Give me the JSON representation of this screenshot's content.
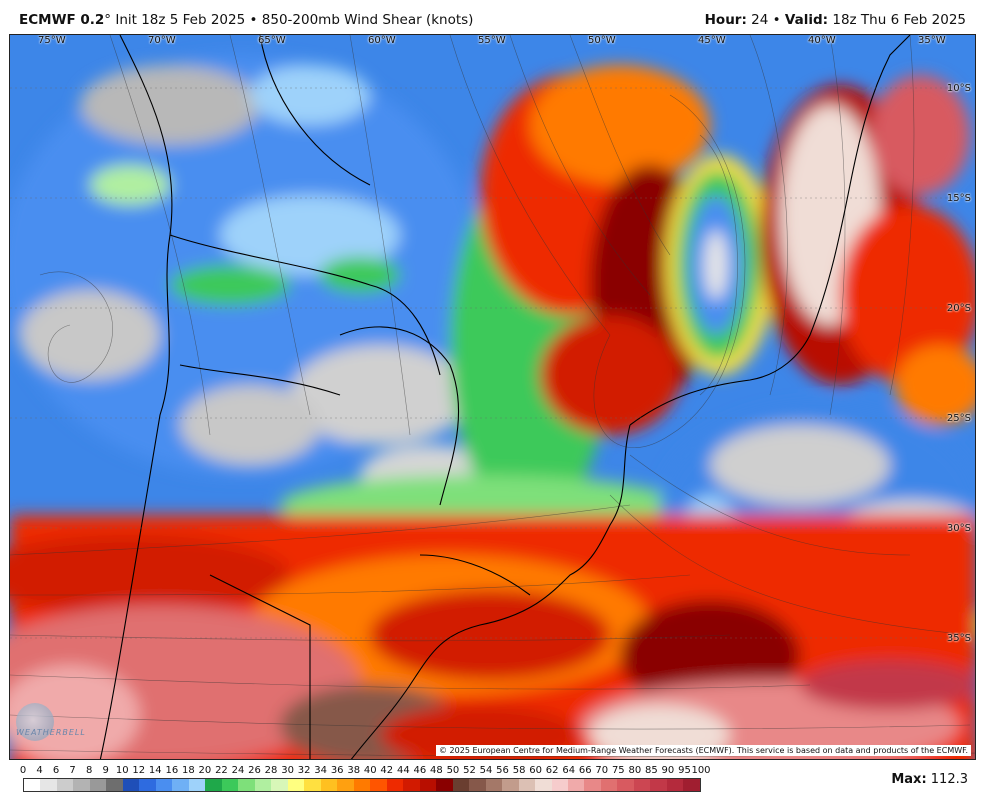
{
  "header": {
    "model": "ECMWF 0.2",
    "degree": "°",
    "init": "Init 18z 5 Feb 2025",
    "sep": "•",
    "field": "850-200mb Wind Shear (knots)",
    "hour_label": "Hour:",
    "hour_value": "24",
    "valid_label": "Valid:",
    "valid_value": "18z Thu 6 Feb 2025"
  },
  "map": {
    "lon_labels": [
      "75°W",
      "70°W",
      "65°W",
      "60°W",
      "55°W",
      "50°W",
      "45°W",
      "40°W",
      "35°W"
    ],
    "lat_labels": [
      "10°S",
      "15°S",
      "20°S",
      "25°S",
      "30°S",
      "35°S"
    ],
    "credit": "© 2025 European Centre for Medium-Range Weather Forecasts (ECMWF). This service is based on data and products of the ECMWF.",
    "watermark": "WEATHERBELL"
  },
  "colorbar": {
    "labels": [
      "0",
      "4",
      "6",
      "7",
      "8",
      "9",
      "10",
      "12",
      "14",
      "16",
      "18",
      "20",
      "22",
      "24",
      "26",
      "28",
      "30",
      "32",
      "34",
      "36",
      "38",
      "40",
      "42",
      "44",
      "46",
      "48",
      "50",
      "52",
      "54",
      "56",
      "58",
      "60",
      "62",
      "64",
      "66",
      "70",
      "75",
      "80",
      "85",
      "90",
      "95",
      "100"
    ],
    "colors": [
      "#ffffff",
      "#e6e6e6",
      "#cccccc",
      "#b3b3b3",
      "#999999",
      "#6e6e6e",
      "#1f4fb8",
      "#2e6be0",
      "#4a8ef0",
      "#6fb0f5",
      "#9ed2fa",
      "#1fa84a",
      "#3cc95a",
      "#7ee07a",
      "#b0efa0",
      "#d8f7b8",
      "#ffff80",
      "#ffe040",
      "#ffc020",
      "#ffa010",
      "#ff7a00",
      "#ff5500",
      "#ee2a00",
      "#d21a00",
      "#b80e00",
      "#8a0000",
      "#6a3e30",
      "#86584a",
      "#a47868",
      "#c29c8c",
      "#dcc0b4",
      "#f0ddd6",
      "#f6cccc",
      "#f0aaaa",
      "#e88888",
      "#e07070",
      "#d85a60",
      "#cc4652",
      "#c23848",
      "#b42a3c",
      "#a01e30"
    ],
    "max_label": "Max:",
    "max_value": "112.3"
  }
}
